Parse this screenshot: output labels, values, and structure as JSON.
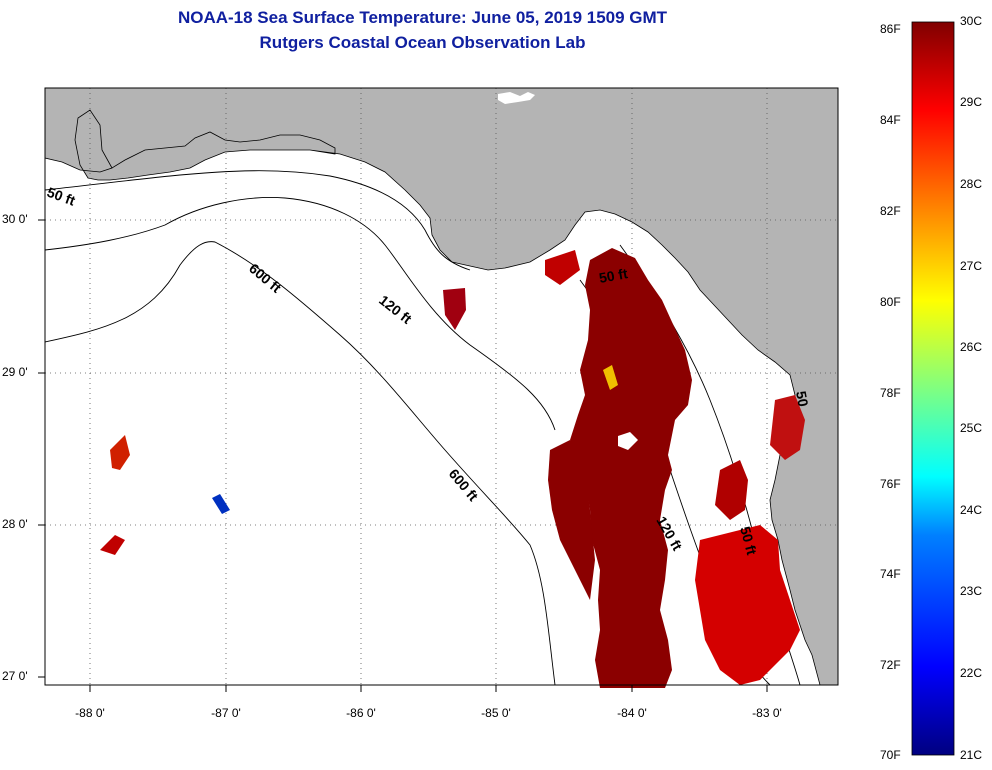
{
  "title": "NOAA-18 Sea Surface Temperature:  June 05, 2019 1509 GMT",
  "subtitle": "Rutgers Coastal Ocean Observation Lab",
  "axes": {
    "lat_ticks": [
      "30 0'",
      "29 0'",
      "28 0'",
      "27 0'"
    ],
    "lon_ticks": [
      "-88 0'",
      "-87 0'",
      "-86 0'",
      "-85 0'",
      "-84 0'",
      "-83 0'"
    ]
  },
  "contours": {
    "c50_west": "50 ft",
    "c600_north": "600 ft",
    "c120_north": "120 ft",
    "c50_east": "50 ft",
    "c600_south": "600 ft",
    "c120_south": "120 ft",
    "c50_south": "50 ft",
    "c50_coast": "50"
  },
  "colorbar": {
    "fahrenheit": [
      "86F",
      "84F",
      "82F",
      "80F",
      "78F",
      "76F",
      "74F",
      "72F",
      "70F"
    ],
    "celsius": [
      "30C",
      "29C",
      "28C",
      "27C",
      "26C",
      "25C",
      "24C",
      "23C",
      "22C",
      "21C"
    ],
    "gradient": [
      "#000080",
      "#0000ff",
      "#0080ff",
      "#00ffff",
      "#80ff80",
      "#ffff00",
      "#ff8000",
      "#ff0000",
      "#800000"
    ]
  },
  "colors": {
    "land": "#b4b4b4",
    "water": "#ffffff",
    "sst_warm": "#8b0000",
    "sst_hot": "#d40000",
    "title": "#1020a0"
  }
}
